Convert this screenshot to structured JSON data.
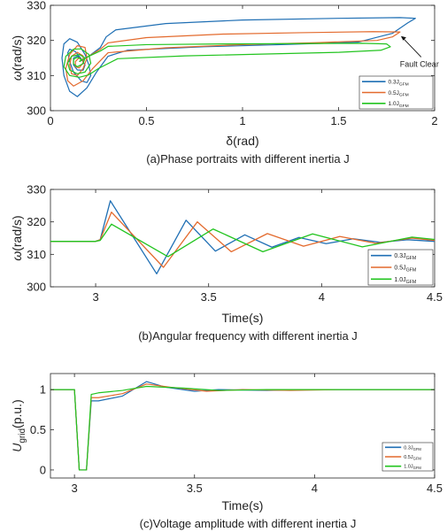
{
  "figure": {
    "background": "#ffffff",
    "axis_color": "#262626"
  },
  "chart_data": [
    {
      "id": "a",
      "type": "line",
      "title": "",
      "caption": "(a)Phase portraits with different inertia J",
      "xlabel": "δ(rad)",
      "ylabel_main": "ω",
      "ylabel_unit": "(rad/s)",
      "xlim": [
        0,
        2
      ],
      "ylim": [
        300,
        330
      ],
      "xticks": [
        0,
        0.5,
        1,
        1.5,
        2
      ],
      "xtick_labels": [
        "0",
        "0.5",
        "1",
        "1.5",
        "2"
      ],
      "yticks": [
        300,
        310,
        320,
        330
      ],
      "ytick_labels": [
        "300",
        "310",
        "320",
        "330"
      ],
      "grid": false,
      "legend_position": "bottom-right",
      "annotation": "Fault Clear",
      "series": [
        {
          "name": "0.3J",
          "subscript": "GFM",
          "color": "#1f6fb4",
          "x": [
            0.15,
            0.2,
            0.26,
            0.29,
            0.34,
            0.6,
            1.0,
            1.5,
            1.82,
            1.9,
            1.86,
            1.78,
            1.6,
            1.2,
            0.8,
            0.4,
            0.3,
            0.24,
            0.19,
            0.14,
            0.1,
            0.07,
            0.06,
            0.07,
            0.1,
            0.14,
            0.18,
            0.2,
            0.21,
            0.19,
            0.16,
            0.12,
            0.1,
            0.09,
            0.1,
            0.13,
            0.16,
            0.18,
            0.17,
            0.14,
            0.12,
            0.12,
            0.14,
            0.16,
            0.155
          ],
          "y": [
            314,
            315.5,
            318,
            321,
            323,
            324.8,
            325.8,
            326.3,
            326.5,
            326.3,
            325,
            322,
            319.5,
            318.8,
            318.2,
            317.2,
            315.5,
            311,
            306.5,
            304,
            305.5,
            310,
            315,
            319,
            320.5,
            319.5,
            316,
            313,
            310,
            308,
            308.5,
            311,
            314,
            316.5,
            317.5,
            316.8,
            314.8,
            313,
            311.5,
            311.6,
            313,
            315,
            315.6,
            314.6,
            314
          ]
        },
        {
          "name": "0.5J",
          "subscript": "GFM",
          "color": "#e36a2d",
          "x": [
            0.15,
            0.2,
            0.26,
            0.3,
            0.5,
            0.9,
            1.3,
            1.68,
            1.82,
            1.78,
            1.7,
            1.4,
            1.0,
            0.6,
            0.3,
            0.22,
            0.17,
            0.12,
            0.09,
            0.08,
            0.1,
            0.14,
            0.18,
            0.19,
            0.17,
            0.14,
            0.11,
            0.1,
            0.11,
            0.14,
            0.17,
            0.17,
            0.15,
            0.13,
            0.13,
            0.15,
            0.16,
            0.155
          ],
          "y": [
            314,
            315.5,
            317.5,
            319.3,
            320.8,
            321.8,
            322.2,
            322.5,
            322.4,
            321,
            320,
            319.4,
            318.8,
            317.9,
            316.5,
            312,
            308.5,
            307,
            308.5,
            312,
            316,
            318.5,
            318,
            315,
            312,
            310,
            310.5,
            313,
            315.5,
            316.6,
            315.6,
            313.6,
            312.2,
            312.5,
            314,
            315.1,
            314.6,
            314
          ]
        },
        {
          "name": "1.0J",
          "subscript": "GFM",
          "color": "#22c41f",
          "x": [
            0.15,
            0.2,
            0.26,
            0.3,
            0.5,
            0.9,
            1.3,
            1.62,
            1.75,
            1.77,
            1.72,
            1.5,
            1.1,
            0.7,
            0.35,
            0.25,
            0.2,
            0.15,
            0.1,
            0.07,
            0.08,
            0.12,
            0.16,
            0.2,
            0.21,
            0.18,
            0.14,
            0.1,
            0.09,
            0.11,
            0.15,
            0.18,
            0.17,
            0.14,
            0.12,
            0.12,
            0.14,
            0.16,
            0.155
          ],
          "y": [
            314,
            315.5,
            317,
            318.3,
            318.8,
            319,
            319.1,
            319.2,
            319,
            318.2,
            317.2,
            316.6,
            316.1,
            315.6,
            314.8,
            312,
            310.2,
            309.5,
            310,
            312.5,
            315.5,
            317.5,
            317.6,
            316,
            313.5,
            311,
            310.5,
            311.6,
            313.6,
            315.5,
            316,
            315,
            313.4,
            312.5,
            313.3,
            314.6,
            315.2,
            314.6,
            314
          ]
        }
      ]
    },
    {
      "id": "b",
      "type": "line",
      "title": "",
      "caption": "(b)Angular frequency with different inertia J",
      "xlabel": "Time(s)",
      "ylabel_main": "ω",
      "ylabel_unit": "(rad/s)",
      "xlim": [
        2.8,
        4.5
      ],
      "ylim": [
        300,
        330
      ],
      "xticks": [
        3,
        3.5,
        4,
        4.5
      ],
      "xtick_labels": [
        "3",
        "3.5",
        "4",
        "4.5"
      ],
      "yticks": [
        300,
        310,
        320,
        330
      ],
      "ytick_labels": [
        "300",
        "310",
        "320",
        "330"
      ],
      "grid": false,
      "legend_position": "bottom-right",
      "series": [
        {
          "name": "0.3J",
          "subscript": "GFM",
          "color": "#1f6fb4",
          "x": [
            2.8,
            3.0,
            3.02,
            3.065,
            3.27,
            3.4,
            3.53,
            3.66,
            3.78,
            3.9,
            4.02,
            4.14,
            4.26,
            4.38,
            4.5
          ],
          "y": [
            314,
            314,
            314.5,
            326.5,
            304,
            320.5,
            311,
            316,
            312.2,
            315.2,
            313.3,
            314.8,
            313.7,
            314.5,
            314
          ]
        },
        {
          "name": "0.5J",
          "subscript": "GFM",
          "color": "#e36a2d",
          "x": [
            2.8,
            3.0,
            3.02,
            3.07,
            3.3,
            3.45,
            3.6,
            3.76,
            3.92,
            4.08,
            4.24,
            4.4,
            4.5
          ],
          "y": [
            314,
            314,
            314.5,
            323,
            306,
            320,
            310.8,
            316.4,
            312.5,
            315.5,
            313.4,
            315,
            314.3
          ]
        },
        {
          "name": "1.0J",
          "subscript": "GFM",
          "color": "#22c41f",
          "x": [
            2.8,
            3.0,
            3.02,
            3.07,
            3.32,
            3.52,
            3.74,
            3.96,
            4.18,
            4.4,
            4.5
          ],
          "y": [
            314,
            314,
            314.3,
            319.3,
            309.3,
            317.8,
            310.8,
            316.3,
            312.3,
            315.3,
            314.6
          ]
        }
      ]
    },
    {
      "id": "c",
      "type": "line",
      "title": "",
      "caption": "(c)Voltage amplitude with different inertia J",
      "xlabel": "Time(s)",
      "ylabel_main": "U",
      "ylabel_sub": "grid",
      "ylabel_unit": "(p.u.)",
      "xlim": [
        2.9,
        4.5
      ],
      "ylim": [
        -0.1,
        1.2
      ],
      "xticks": [
        3,
        3.5,
        4,
        4.5
      ],
      "xtick_labels": [
        "3",
        "3.5",
        "4",
        "4.5"
      ],
      "yticks": [
        0,
        0.5,
        1
      ],
      "ytick_labels": [
        "0",
        "0.5",
        "1"
      ],
      "grid": false,
      "legend_position": "bottom-right",
      "series": [
        {
          "name": "0.3J",
          "subscript": "GFM",
          "color": "#1f6fb4",
          "x": [
            2.9,
            3.0,
            3.02,
            3.05,
            3.07,
            3.1,
            3.2,
            3.3,
            3.38,
            3.5,
            3.6,
            3.8,
            4.0,
            4.5
          ],
          "y": [
            1,
            1,
            0,
            0,
            0.86,
            0.86,
            0.92,
            1.1,
            1.03,
            0.98,
            1.0,
            0.99,
            1.0,
            1.0
          ]
        },
        {
          "name": "0.5J",
          "subscript": "GFM",
          "color": "#e36a2d",
          "x": [
            2.9,
            3.0,
            3.02,
            3.05,
            3.07,
            3.1,
            3.2,
            3.3,
            3.4,
            3.55,
            3.7,
            3.9,
            4.1,
            4.5
          ],
          "y": [
            1,
            1,
            0,
            0,
            0.9,
            0.9,
            0.95,
            1.07,
            1.03,
            0.98,
            1.0,
            0.99,
            1.0,
            1.0
          ]
        },
        {
          "name": "1.0J",
          "subscript": "GFM",
          "color": "#22c41f",
          "x": [
            2.9,
            3.0,
            3.02,
            3.05,
            3.07,
            3.1,
            3.2,
            3.3,
            3.45,
            3.6,
            3.8,
            4.0,
            4.5
          ],
          "y": [
            1,
            1,
            0,
            0,
            0.94,
            0.96,
            0.99,
            1.04,
            1.02,
            0.99,
            1.0,
            1.0,
            1.0
          ]
        }
      ]
    }
  ]
}
